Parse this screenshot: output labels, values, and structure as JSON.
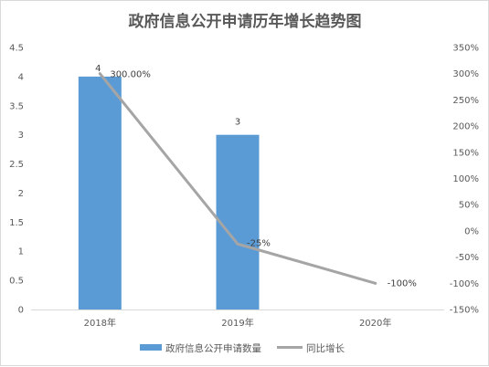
{
  "chart_data": {
    "type": "bar",
    "title": "政府信息公开申请历年增长趋势图",
    "categories": [
      "2018年",
      "2019年",
      "2020年"
    ],
    "series": [
      {
        "name": "政府信息公开申请数量",
        "type": "bar",
        "axis": "left",
        "values": [
          4,
          3,
          0
        ],
        "labels": [
          "4",
          "3",
          ""
        ],
        "color": "#5b9bd5"
      },
      {
        "name": "同比增长",
        "type": "line",
        "axis": "right",
        "values": [
          300,
          -25,
          -100
        ],
        "labels": [
          "300.00%",
          "-25%",
          "-100%"
        ],
        "color": "#a5a5a5"
      }
    ],
    "y_left": {
      "ylim": [
        0,
        4.5
      ],
      "ticks": [
        "0",
        "0.5",
        "1",
        "1.5",
        "2",
        "2.5",
        "3",
        "3.5",
        "4",
        "4.5"
      ]
    },
    "y_right": {
      "ylim": [
        -150,
        350
      ],
      "ticks": [
        "-150%",
        "-100%",
        "-50%",
        "0%",
        "50%",
        "100%",
        "150%",
        "200%",
        "250%",
        "300%",
        "350%"
      ]
    },
    "grid": false,
    "legend": "bottom"
  }
}
